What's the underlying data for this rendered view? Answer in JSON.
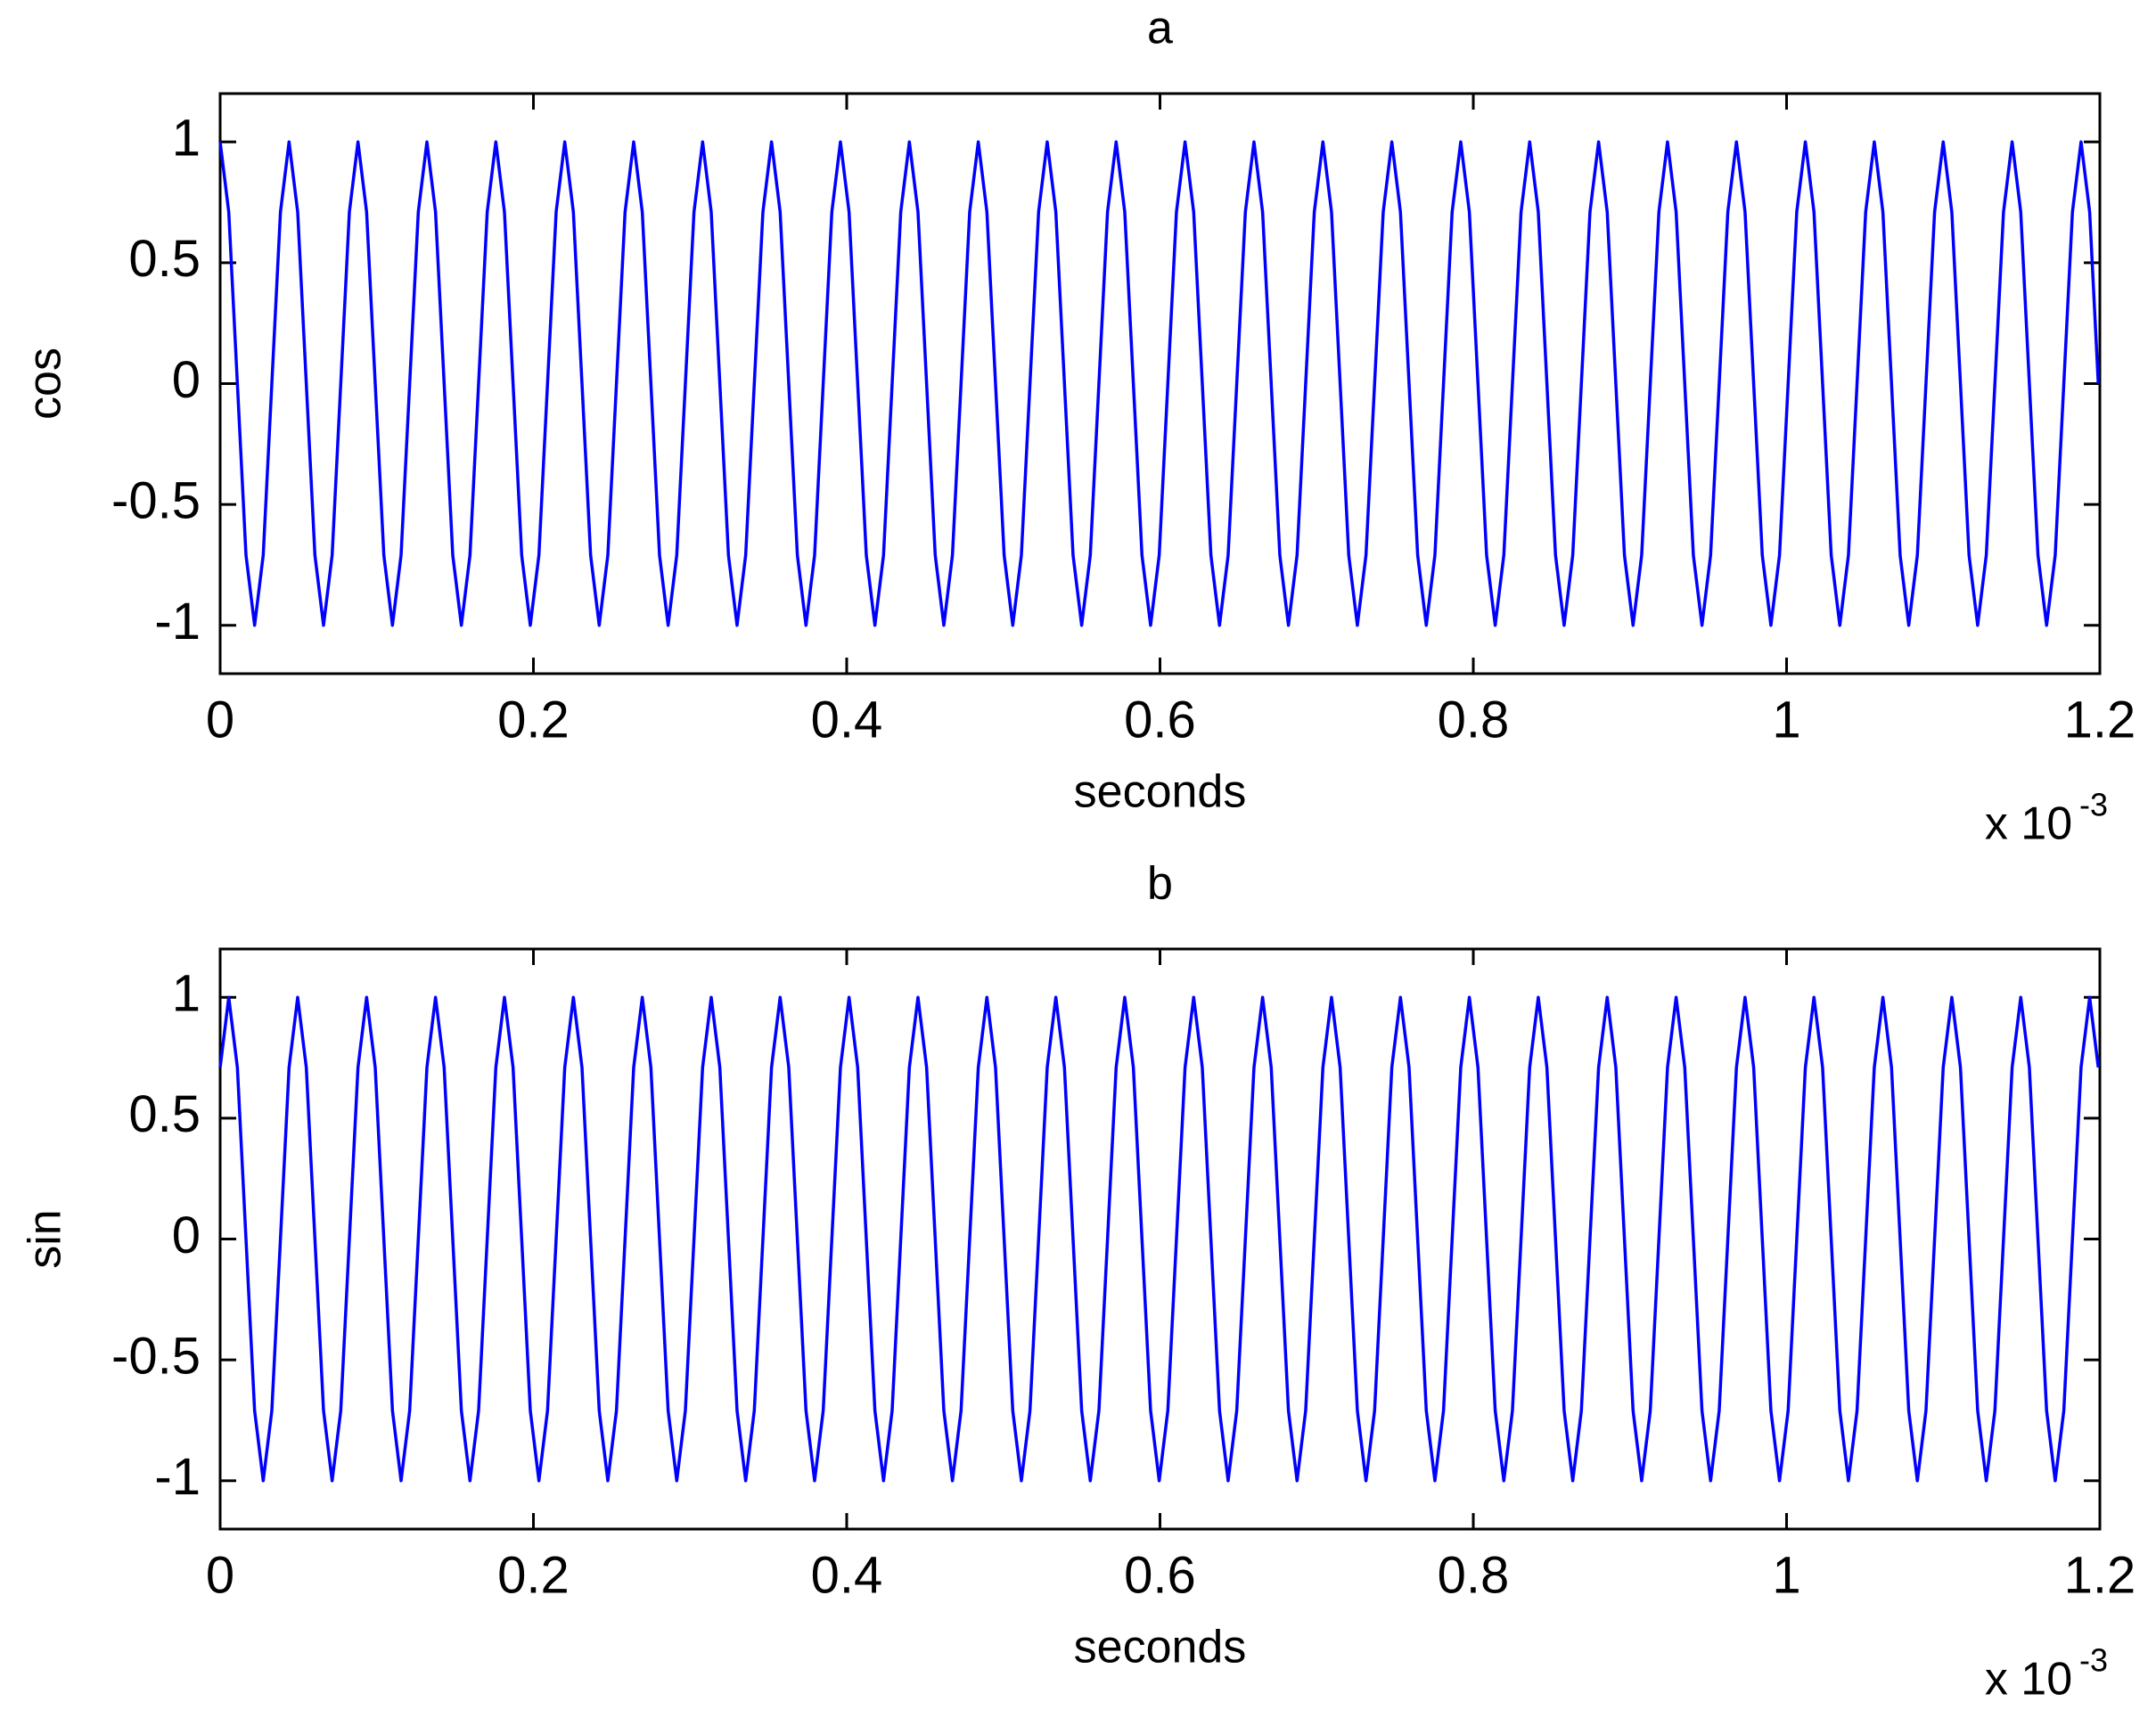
{
  "chart_data": [
    {
      "type": "line",
      "title": "a",
      "xlabel": "seconds",
      "ylabel": "cos",
      "x_multiplier": {
        "base": "x 10",
        "exponent": "-3"
      },
      "color": "#0000ff",
      "xlim": [
        0,
        1.2
      ],
      "ylim": [
        -1.2,
        1.2
      ],
      "xticks": [
        0,
        0.2,
        0.4,
        0.6,
        0.8,
        1,
        1.2
      ],
      "yticks": [
        -1,
        -0.5,
        0,
        0.5,
        1
      ],
      "x": [
        0,
        0.0055,
        0.011,
        0.0165,
        0.022,
        0.0275,
        0.033,
        0.0385,
        0.044,
        0.0495,
        0.055,
        0.0605,
        0.066,
        0.0715,
        0.077,
        0.0825,
        0.088,
        0.0935,
        0.099,
        0.1045,
        0.11,
        0.1155,
        0.121,
        0.1265,
        0.132,
        0.1375,
        0.143,
        0.1485,
        0.154,
        0.1595,
        0.165,
        0.1705,
        0.176,
        0.1815,
        0.187,
        0.1925,
        0.198,
        0.2035,
        0.209,
        0.2145,
        0.22,
        0.2255,
        0.231,
        0.2365,
        0.242,
        0.2475,
        0.253,
        0.2585,
        0.264,
        0.2695,
        0.275,
        0.2805,
        0.286,
        0.2915,
        0.297,
        0.3025,
        0.308,
        0.3135,
        0.319,
        0.3245,
        0.33,
        0.3355,
        0.341,
        0.3465,
        0.352,
        0.3575,
        0.363,
        0.3685,
        0.374,
        0.3795,
        0.385,
        0.3905,
        0.396,
        0.4015,
        0.407,
        0.4125,
        0.418,
        0.4235,
        0.429,
        0.4345,
        0.44,
        0.4455,
        0.451,
        0.4565,
        0.462,
        0.4675,
        0.473,
        0.4785,
        0.484,
        0.4895,
        0.495,
        0.5005,
        0.506,
        0.5115,
        0.517,
        0.5225,
        0.528,
        0.5335,
        0.539,
        0.5445,
        0.55,
        0.5555,
        0.561,
        0.5665,
        0.572,
        0.5775,
        0.583,
        0.5885,
        0.594,
        0.5995,
        0.605,
        0.6105,
        0.616,
        0.6215,
        0.627,
        0.6325,
        0.638,
        0.6435,
        0.649,
        0.6545,
        0.66,
        0.6655,
        0.671,
        0.6765,
        0.682,
        0.6875,
        0.693,
        0.6985,
        0.704,
        0.7095,
        0.715,
        0.7205,
        0.726,
        0.7315,
        0.737,
        0.7425,
        0.748,
        0.7535,
        0.759,
        0.7645,
        0.77,
        0.7755,
        0.781,
        0.7865,
        0.792,
        0.7975,
        0.803,
        0.8085,
        0.814,
        0.8195,
        0.825,
        0.8305,
        0.836,
        0.8415,
        0.847,
        0.8525,
        0.858,
        0.8635,
        0.869,
        0.8745,
        0.88,
        0.8855,
        0.891,
        0.8965,
        0.902,
        0.9075,
        0.913,
        0.9185,
        0.924,
        0.9295,
        0.935,
        0.9405,
        0.946,
        0.9515,
        0.957,
        0.9625,
        0.968,
        0.9735,
        0.979,
        0.9845,
        0.99,
        0.9955,
        1.001,
        1.0065,
        1.012,
        1.0175,
        1.023,
        1.0285,
        1.034,
        1.0395,
        1.045,
        1.0505,
        1.056,
        1.0615,
        1.067,
        1.0725,
        1.078,
        1.0835,
        1.089,
        1.0945,
        1.1,
        1.1055,
        1.111,
        1.1165,
        1.122,
        1.1275,
        1.133,
        1.1385,
        1.144,
        1.1495,
        1.155,
        1.1605,
        1.166,
        1.1715,
        1.177,
        1.1825,
        1.188,
        1.1935,
        1.199
      ],
      "values": [
        1,
        0.71,
        0,
        -0.71,
        -1,
        -0.71,
        0,
        0.71,
        1,
        0.71,
        0,
        -0.71,
        -1,
        -0.71,
        0,
        0.71,
        1,
        0.71,
        0,
        -0.71,
        -1,
        -0.71,
        0,
        0.71,
        1,
        0.71,
        0,
        -0.71,
        -1,
        -0.71,
        0,
        0.71,
        1,
        0.71,
        0,
        -0.71,
        -1,
        -0.71,
        0,
        0.71,
        1,
        0.71,
        0,
        -0.71,
        -1,
        -0.71,
        0,
        0.71,
        1,
        0.71,
        0,
        -0.71,
        -1,
        -0.71,
        0,
        0.71,
        1,
        0.71,
        0,
        -0.71,
        -1,
        -0.71,
        0,
        0.71,
        1,
        0.71,
        0,
        -0.71,
        -1,
        -0.71,
        0,
        0.71,
        1,
        0.71,
        0,
        -0.71,
        -1,
        -0.71,
        0,
        0.71,
        1,
        0.71,
        0,
        -0.71,
        -1,
        -0.71,
        0,
        0.71,
        1,
        0.71,
        0,
        -0.71,
        -1,
        -0.71,
        0,
        0.71,
        1,
        0.71,
        0,
        -0.71,
        -1,
        -0.71,
        0,
        0.71,
        1,
        0.71,
        0,
        -0.71,
        -1,
        -0.71,
        0,
        0.71,
        1,
        0.71,
        0,
        -0.71,
        -1,
        -0.71,
        0,
        0.71,
        1,
        0.71,
        0,
        -0.71,
        -1,
        -0.71,
        0,
        0.71,
        1,
        0.71,
        0,
        -0.71,
        -1,
        -0.71,
        0,
        0.71,
        1,
        0.71,
        0,
        -0.71,
        -1,
        -0.71,
        0,
        0.71,
        1,
        0.71,
        0,
        -0.71,
        -1,
        -0.71,
        0,
        0.71,
        1,
        0.71,
        0,
        -0.71,
        -1,
        -0.71,
        0,
        0.71,
        1,
        0.71,
        0,
        -0.71,
        -1,
        -0.71,
        0,
        0.71,
        1,
        0.71,
        0,
        -0.71,
        -1,
        -0.71,
        0,
        0.71,
        1,
        0.71,
        0,
        -0.71,
        -1,
        -0.71,
        0,
        0.71,
        1,
        0.71,
        0,
        -0.71,
        -1,
        -0.71,
        0,
        0.71,
        1,
        0.71,
        0,
        -0.71,
        -1,
        -0.71,
        0,
        0.71,
        1,
        0.71,
        0,
        -0.71,
        -1,
        -0.71,
        0,
        0.71,
        1,
        0.71,
        0,
        -0.71,
        -1,
        -0.71,
        0,
        0.71,
        1,
        0.71,
        0
      ]
    },
    {
      "type": "line",
      "title": "b",
      "xlabel": "seconds",
      "ylabel": "sin",
      "x_multiplier": {
        "base": "x 10",
        "exponent": "-3"
      },
      "color": "#0000ff",
      "xlim": [
        0,
        1.2
      ],
      "ylim": [
        -1.2,
        1.2
      ],
      "xticks": [
        0,
        0.2,
        0.4,
        0.6,
        0.8,
        1,
        1.2
      ],
      "yticks": [
        -1,
        -0.5,
        0,
        0.5,
        1
      ],
      "x": [
        0,
        0.0055,
        0.011,
        0.0165,
        0.022,
        0.0275,
        0.033,
        0.0385,
        0.044,
        0.0495,
        0.055,
        0.0605,
        0.066,
        0.0715,
        0.077,
        0.0825,
        0.088,
        0.0935,
        0.099,
        0.1045,
        0.11,
        0.1155,
        0.121,
        0.1265,
        0.132,
        0.1375,
        0.143,
        0.1485,
        0.154,
        0.1595,
        0.165,
        0.1705,
        0.176,
        0.1815,
        0.187,
        0.1925,
        0.198,
        0.2035,
        0.209,
        0.2145,
        0.22,
        0.2255,
        0.231,
        0.2365,
        0.242,
        0.2475,
        0.253,
        0.2585,
        0.264,
        0.2695,
        0.275,
        0.2805,
        0.286,
        0.2915,
        0.297,
        0.3025,
        0.308,
        0.3135,
        0.319,
        0.3245,
        0.33,
        0.3355,
        0.341,
        0.3465,
        0.352,
        0.3575,
        0.363,
        0.3685,
        0.374,
        0.3795,
        0.385,
        0.3905,
        0.396,
        0.4015,
        0.407,
        0.4125,
        0.418,
        0.4235,
        0.429,
        0.4345,
        0.44,
        0.4455,
        0.451,
        0.4565,
        0.462,
        0.4675,
        0.473,
        0.4785,
        0.484,
        0.4895,
        0.495,
        0.5005,
        0.506,
        0.5115,
        0.517,
        0.5225,
        0.528,
        0.5335,
        0.539,
        0.5445,
        0.55,
        0.5555,
        0.561,
        0.5665,
        0.572,
        0.5775,
        0.583,
        0.5885,
        0.594,
        0.5995,
        0.605,
        0.6105,
        0.616,
        0.6215,
        0.627,
        0.6325,
        0.638,
        0.6435,
        0.649,
        0.6545,
        0.66,
        0.6655,
        0.671,
        0.6765,
        0.682,
        0.6875,
        0.693,
        0.6985,
        0.704,
        0.7095,
        0.715,
        0.7205,
        0.726,
        0.7315,
        0.737,
        0.7425,
        0.748,
        0.7535,
        0.759,
        0.7645,
        0.77,
        0.7755,
        0.781,
        0.7865,
        0.792,
        0.7975,
        0.803,
        0.8085,
        0.814,
        0.8195,
        0.825,
        0.8305,
        0.836,
        0.8415,
        0.847,
        0.8525,
        0.858,
        0.8635,
        0.869,
        0.8745,
        0.88,
        0.8855,
        0.891,
        0.8965,
        0.902,
        0.9075,
        0.913,
        0.9185,
        0.924,
        0.9295,
        0.935,
        0.9405,
        0.946,
        0.9515,
        0.957,
        0.9625,
        0.968,
        0.9735,
        0.979,
        0.9845,
        0.99,
        0.9955,
        1.001,
        1.0065,
        1.012,
        1.0175,
        1.023,
        1.0285,
        1.034,
        1.0395,
        1.045,
        1.0505,
        1.056,
        1.0615,
        1.067,
        1.0725,
        1.078,
        1.0835,
        1.089,
        1.0945,
        1.1,
        1.1055,
        1.111,
        1.1165,
        1.122,
        1.1275,
        1.133,
        1.1385,
        1.144,
        1.1495,
        1.155,
        1.1605,
        1.166,
        1.1715,
        1.177,
        1.1825,
        1.188,
        1.1935,
        1.199
      ],
      "values": [
        0.71,
        1,
        0.71,
        0,
        -0.71,
        -1,
        -0.71,
        0,
        0.71,
        1,
        0.71,
        0,
        -0.71,
        -1,
        -0.71,
        0,
        0.71,
        1,
        0.71,
        0,
        -0.71,
        -1,
        -0.71,
        0,
        0.71,
        1,
        0.71,
        0,
        -0.71,
        -1,
        -0.71,
        0,
        0.71,
        1,
        0.71,
        0,
        -0.71,
        -1,
        -0.71,
        0,
        0.71,
        1,
        0.71,
        0,
        -0.71,
        -1,
        -0.71,
        0,
        0.71,
        1,
        0.71,
        0,
        -0.71,
        -1,
        -0.71,
        0,
        0.71,
        1,
        0.71,
        0,
        -0.71,
        -1,
        -0.71,
        0,
        0.71,
        1,
        0.71,
        0,
        -0.71,
        -1,
        -0.71,
        0,
        0.71,
        1,
        0.71,
        0,
        -0.71,
        -1,
        -0.71,
        0,
        0.71,
        1,
        0.71,
        0,
        -0.71,
        -1,
        -0.71,
        0,
        0.71,
        1,
        0.71,
        0,
        -0.71,
        -1,
        -0.71,
        0,
        0.71,
        1,
        0.71,
        0,
        -0.71,
        -1,
        -0.71,
        0,
        0.71,
        1,
        0.71,
        0,
        -0.71,
        -1,
        -0.71,
        0,
        0.71,
        1,
        0.71,
        0,
        -0.71,
        -1,
        -0.71,
        0,
        0.71,
        1,
        0.71,
        0,
        -0.71,
        -1,
        -0.71,
        0,
        0.71,
        1,
        0.71,
        0,
        -0.71,
        -1,
        -0.71,
        0,
        0.71,
        1,
        0.71,
        0,
        -0.71,
        -1,
        -0.71,
        0,
        0.71,
        1,
        0.71,
        0,
        -0.71,
        -1,
        -0.71,
        0,
        0.71,
        1,
        0.71,
        0,
        -0.71,
        -1,
        -0.71,
        0,
        0.71,
        1,
        0.71,
        0,
        -0.71,
        -1,
        -0.71,
        0,
        0.71,
        1,
        0.71,
        0,
        -0.71,
        -1,
        -0.71,
        0,
        0.71,
        1,
        0.71,
        0,
        -0.71,
        -1,
        -0.71,
        0,
        0.71,
        1,
        0.71,
        0,
        -0.71,
        -1,
        -0.71,
        0,
        0.71,
        1,
        0.71,
        0,
        -0.71,
        -1,
        -0.71,
        0,
        0.71,
        1,
        0.71,
        0,
        -0.71,
        -1,
        -0.71,
        0,
        0.71,
        1,
        0.71,
        0,
        -0.71,
        -1,
        -0.71,
        0,
        0.71,
        1,
        0.71
      ]
    }
  ]
}
